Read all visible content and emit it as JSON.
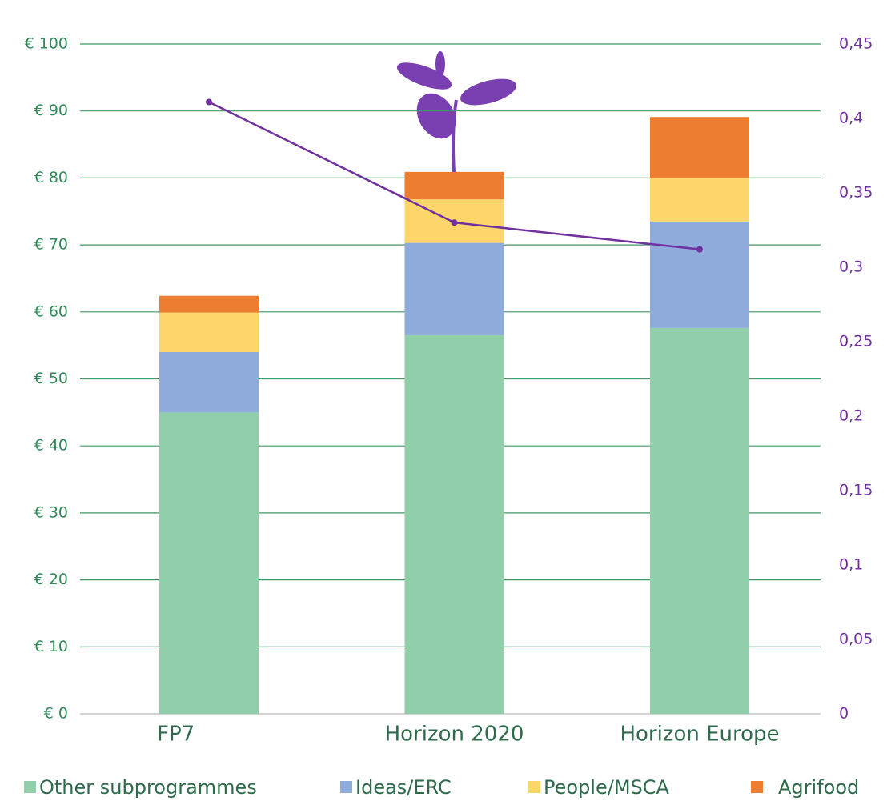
{
  "chart_data": {
    "type": "bar",
    "stacked": true,
    "categories": [
      "FP7",
      "Horizon 2020",
      "Horizon Europe"
    ],
    "series": [
      {
        "name": "Other subprogrammes",
        "color": "#90cfa9",
        "values": [
          45,
          56.5,
          57.6
        ]
      },
      {
        "name": "Ideas/ERC",
        "color": "#8eabdc",
        "values": [
          9,
          13.8,
          15.9
        ]
      },
      {
        "name": "People/MSCA",
        "color": "#fdd66b",
        "values": [
          5.9,
          6.5,
          6.5
        ]
      },
      {
        "name": "Agrifood",
        "color": "#ed7d31",
        "values": [
          2.5,
          4.1,
          9.1
        ]
      },
      {
        "type": "line",
        "axis": "y2",
        "color": "#7030a0",
        "values": [
          0.411,
          0.33,
          0.312
        ]
      }
    ],
    "ylim": [
      0,
      100
    ],
    "yticks": [
      {
        "value": 0,
        "label": "€ 0"
      },
      {
        "value": 10,
        "label": "€ 10"
      },
      {
        "value": 20,
        "label": "€ 20"
      },
      {
        "value": 30,
        "label": "€ 30"
      },
      {
        "value": 40,
        "label": "€ 40"
      },
      {
        "value": 50,
        "label": "€ 50"
      },
      {
        "value": 60,
        "label": "€ 60"
      },
      {
        "value": 70,
        "label": "€ 70"
      },
      {
        "value": 80,
        "label": "€ 80"
      },
      {
        "value": 90,
        "label": "€ 90"
      },
      {
        "value": 100,
        "label": "€ 100"
      }
    ],
    "y2lim": [
      0,
      0.45
    ],
    "y2ticks": [
      0,
      {
        "value": 0.05,
        "label": "0,05"
      },
      {
        "value": 0.1,
        "label": "0,1"
      },
      {
        "value": 0.15,
        "label": "0,15"
      },
      {
        "value": 0.2,
        "label": "0,2"
      },
      {
        "value": 0.25,
        "label": "0,25"
      },
      {
        "value": 0.3,
        "label": "0,3"
      },
      {
        "value": 0.35,
        "label": "0,35"
      },
      {
        "value": 0.4,
        "label": "0,4"
      },
      {
        "value": 0.45,
        "label": "0,45"
      }
    ],
    "grid": true
  }
}
